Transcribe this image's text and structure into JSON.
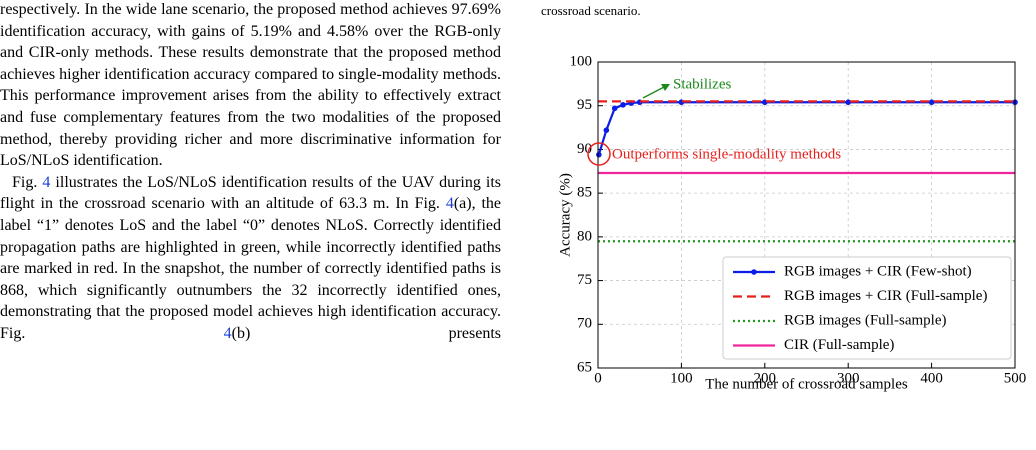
{
  "body": {
    "paragraphs": [
      {
        "parts": [
          {
            "text": "respectively. In the wide lane scenario, the proposed method achieves 97.69% identification accuracy, with gains of 5.19% and 4.58% over the RGB-only and CIR-only methods. These results demonstrate that the proposed method achieves higher identification accuracy compared to single-modality methods. This performance improvement arises from the ability to effectively extract and fuse complementary features from the two modalities of the proposed method, thereby providing richer and more discriminative information for LoS/NLoS identification."
          }
        ]
      },
      {
        "parts": [
          {
            "text": "Fig. "
          },
          {
            "text": "4",
            "link": true
          },
          {
            "text": " illustrates the LoS/NLoS identification results of the UAV during its flight in the crossroad scenario with an altitude of 63.3 m. In Fig. "
          },
          {
            "text": "4",
            "link": true
          },
          {
            "text": "(a), the label “1” denotes LoS and the label “0” denotes NLoS. Correctly identified propagation paths are highlighted in green, while incorrectly identified paths are marked in red. In the snapshot, the number of correctly identified paths is 868, which significantly outnumbers the 32 incorrectly identified ones, demonstrating that the proposed model achieves high identification accuracy. Fig. "
          },
          {
            "text": "4",
            "link": true
          },
          {
            "text": "(b) presents"
          }
        ]
      }
    ]
  },
  "caption_fragment": "crossroad scenario.",
  "chart_data": {
    "type": "line",
    "x_label": "The number of crossroad samples",
    "y_label": "Accuracy (%)",
    "xlim": [
      0,
      500
    ],
    "ylim": [
      65,
      100
    ],
    "xticks": [
      0,
      100,
      200,
      300,
      400,
      500
    ],
    "yticks": [
      65,
      70,
      75,
      80,
      85,
      90,
      95,
      100
    ],
    "grid": true,
    "legend": "lower right",
    "series": [
      {
        "name": "RGB images + CIR (Few-shot)",
        "color": "#0a1ee6",
        "linestyle": "solid",
        "marker": "o",
        "x": [
          1,
          10,
          20,
          30,
          40,
          50,
          100,
          200,
          300,
          400,
          500
        ],
        "values": [
          89.4,
          92.2,
          94.7,
          95.1,
          95.3,
          95.4,
          95.4,
          95.4,
          95.4,
          95.4,
          95.4
        ]
      },
      {
        "name": "RGB images + CIR (Full-sample)",
        "color": "#e8201c",
        "linestyle": "dashed",
        "x": [
          0,
          500
        ],
        "values": [
          95.5,
          95.5
        ]
      },
      {
        "name": "RGB images (Full-sample)",
        "color": "#1f9a1f",
        "linestyle": "dotted",
        "x": [
          0,
          500
        ],
        "values": [
          79.5,
          79.5
        ]
      },
      {
        "name": "CIR (Full-sample)",
        "color": "#f0259b",
        "linestyle": "solid",
        "x": [
          0,
          500
        ],
        "values": [
          87.3,
          87.3
        ]
      }
    ],
    "annotations": [
      {
        "text": "Stabilizes",
        "color": "#1a8a1a"
      },
      {
        "text": "Outperforms single-modality methods",
        "color": "#e8201c"
      }
    ]
  }
}
